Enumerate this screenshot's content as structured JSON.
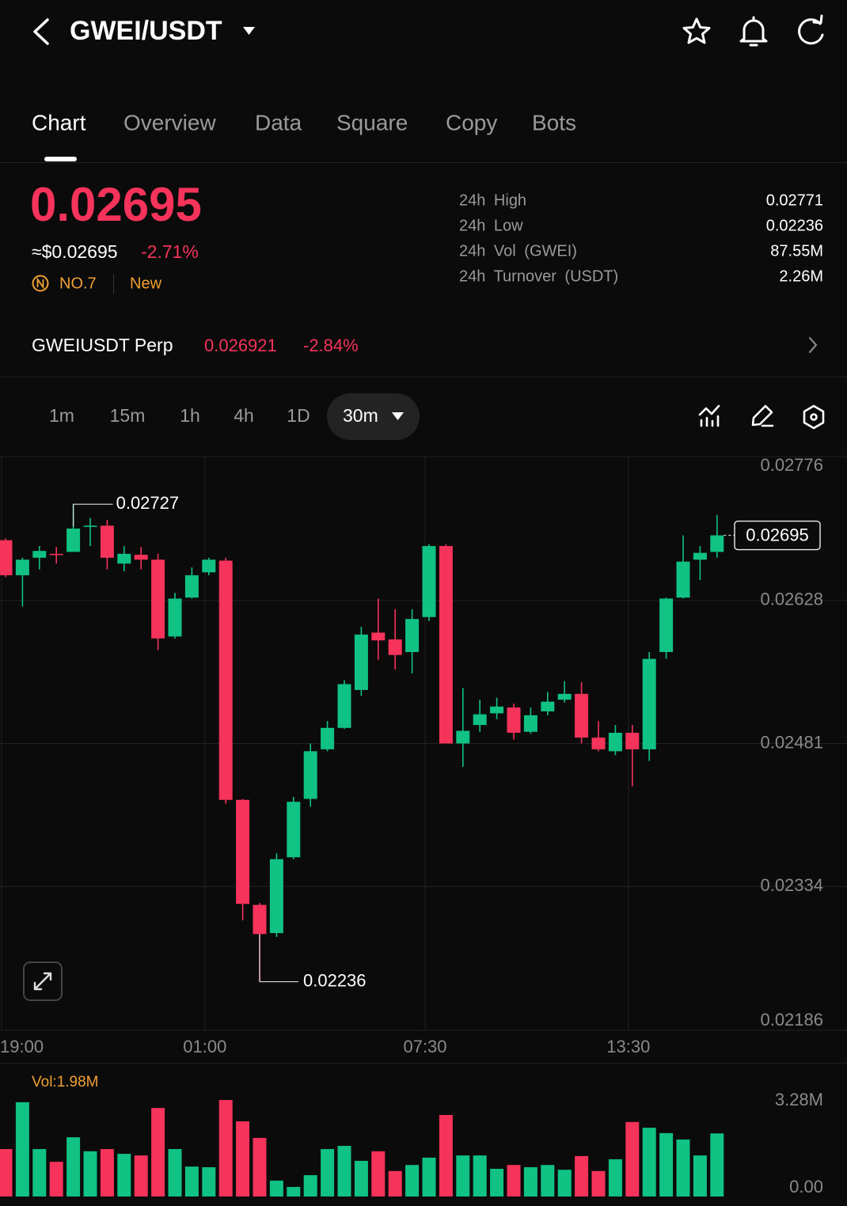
{
  "header": {
    "pair": "GWEI/USDT"
  },
  "tabs": [
    "Chart",
    "Overview",
    "Data",
    "Square",
    "Copy",
    "Bots"
  ],
  "price": {
    "last": "0.02695",
    "usd": "≈$0.02695",
    "change": "-2.71%",
    "rank": "NO.7",
    "tag": "New"
  },
  "stats": [
    {
      "label": "24h High",
      "value": "0.02771"
    },
    {
      "label": "24h Low",
      "value": "0.02236"
    },
    {
      "label": "24h Vol (GWEI)",
      "value": "87.55M"
    },
    {
      "label": "24h Turnover (USDT)",
      "value": "2.26M"
    }
  ],
  "perp": {
    "name": "GWEIUSDT Perp",
    "price": "0.026921",
    "change": "-2.84%"
  },
  "intervals": [
    "1m",
    "15m",
    "1h",
    "4h",
    "1D"
  ],
  "selected_interval": "30m",
  "chart_data": [
    {
      "type": "candlestick",
      "categories": [
        "19:00",
        null,
        null,
        null,
        null,
        null,
        null,
        null,
        null,
        null,
        null,
        null,
        "01:00",
        null,
        null,
        null,
        null,
        null,
        null,
        null,
        null,
        null,
        null,
        null,
        null,
        "07:30",
        null,
        null,
        null,
        null,
        null,
        null,
        null,
        null,
        null,
        null,
        null,
        "13:30",
        null,
        null,
        null,
        null,
        null
      ],
      "open": [
        0.0269,
        0.02654,
        0.02672,
        0.02676,
        0.02678,
        0.02704,
        0.02705,
        0.02666,
        0.02675,
        0.0267,
        0.02591,
        0.02631,
        0.02657,
        0.02669,
        0.02423,
        0.02315,
        0.02286,
        0.02364,
        0.02424,
        0.02475,
        0.02497,
        0.02536,
        0.02595,
        0.02588,
        0.02575,
        0.02611,
        0.02684,
        0.02481,
        0.025,
        0.02512,
        0.02518,
        0.02493,
        0.02514,
        0.02526,
        0.02532,
        0.02487,
        0.02473,
        0.02492,
        0.02475,
        0.02575,
        0.02631,
        0.0267,
        0.02678
      ],
      "high": [
        0.02692,
        0.02672,
        0.02684,
        0.02683,
        0.02727,
        0.02713,
        0.02711,
        0.02684,
        0.02683,
        0.02676,
        0.02636,
        0.02662,
        0.02672,
        0.02672,
        0.02424,
        0.02317,
        0.02368,
        0.02426,
        0.02481,
        0.02504,
        0.02546,
        0.02601,
        0.0263,
        0.02619,
        0.02619,
        0.02686,
        0.02686,
        0.02538,
        0.02526,
        0.02528,
        0.02522,
        0.02518,
        0.02534,
        0.02545,
        0.02544,
        0.02504,
        0.025,
        0.025,
        0.02575,
        0.02631,
        0.02695,
        0.02684,
        0.02716
      ],
      "low": [
        0.02652,
        0.02622,
        0.0266,
        0.02666,
        0.02678,
        0.02684,
        0.0266,
        0.02658,
        0.0266,
        0.02577,
        0.02589,
        0.0263,
        0.02654,
        0.02419,
        0.02299,
        0.02236,
        0.02282,
        0.02362,
        0.02416,
        0.02473,
        0.02496,
        0.0253,
        0.02567,
        0.02557,
        0.02553,
        0.02607,
        0.02481,
        0.02457,
        0.02493,
        0.02506,
        0.02485,
        0.02491,
        0.0251,
        0.02523,
        0.02481,
        0.02473,
        0.02469,
        0.02437,
        0.02463,
        0.02568,
        0.0263,
        0.02649,
        0.02672
      ],
      "close": [
        0.02654,
        0.0267,
        0.02679,
        0.02675,
        0.02702,
        0.02705,
        0.02672,
        0.02676,
        0.0267,
        0.02589,
        0.0263,
        0.02654,
        0.0267,
        0.02423,
        0.02316,
        0.02285,
        0.02362,
        0.02421,
        0.02473,
        0.02497,
        0.02542,
        0.02593,
        0.02587,
        0.02572,
        0.02609,
        0.02684,
        0.02481,
        0.02494,
        0.02511,
        0.02519,
        0.02492,
        0.0251,
        0.02524,
        0.02532,
        0.02487,
        0.02475,
        0.02492,
        0.02475,
        0.02568,
        0.0263,
        0.02668,
        0.02677,
        0.02695
      ],
      "up_color": "#10c283",
      "down_color": "#f6335b",
      "ylim": [
        0.02186,
        0.02776
      ],
      "yticks": [
        0.02776,
        0.02628,
        0.02481,
        0.02334,
        0.02186
      ],
      "grid": true,
      "high_marker": 0.02727,
      "low_marker": 0.02236,
      "last_price": 0.02695
    },
    {
      "type": "bar",
      "title": "Vol:1.98M",
      "values": [
        1.49,
        2.96,
        1.49,
        1.09,
        1.86,
        1.42,
        1.49,
        1.34,
        1.29,
        2.78,
        1.49,
        0.94,
        0.92,
        3.03,
        2.36,
        1.84,
        0.5,
        0.3,
        0.67,
        1.49,
        1.59,
        1.12,
        1.42,
        0.8,
        0.99,
        1.22,
        2.56,
        1.29,
        1.29,
        0.87,
        0.99,
        0.92,
        0.99,
        0.84,
        1.27,
        0.8,
        1.17,
        2.34,
        2.16,
        1.99,
        1.79,
        1.29,
        1.98
      ],
      "ylim": [
        0,
        3.28
      ],
      "yticks": [
        {
          "value": 3.28,
          "label": "3.28M"
        },
        {
          "value": 0,
          "label": "0.00"
        }
      ]
    }
  ]
}
